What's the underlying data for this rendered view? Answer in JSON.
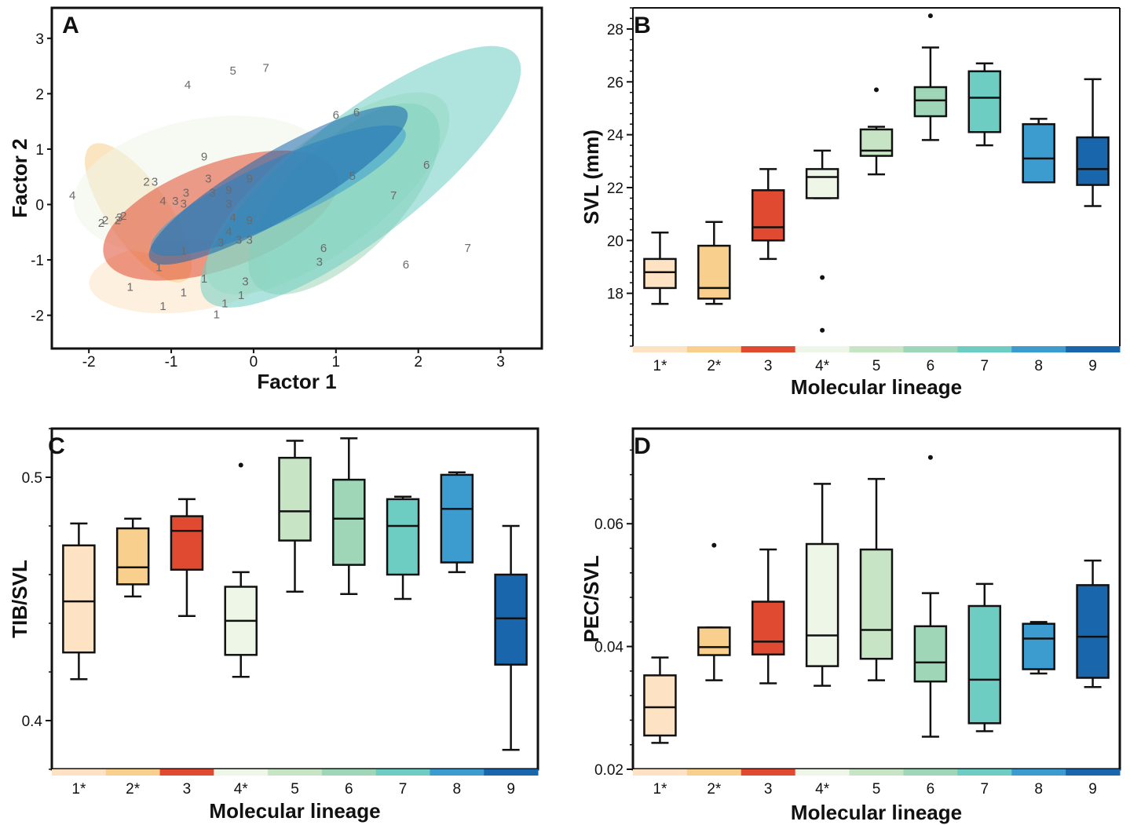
{
  "colors": {
    "1": "#fde3c4",
    "2": "#f8cf8c",
    "3": "#e04a30",
    "4": "#eef6e8",
    "5": "#c7e5c4",
    "6": "#9fd6b7",
    "7": "#6ecdc2",
    "8": "#3d9ccf",
    "9": "#1a66ad"
  },
  "chart_data": [
    {
      "panel": "A",
      "type": "scatter",
      "xlabel": "Factor 1",
      "ylabel": "Factor 2",
      "xticks": [
        "-2",
        "-1",
        "0",
        "1",
        "2",
        "3"
      ],
      "yticks": [
        "-2",
        "-1",
        "0",
        "1",
        "2",
        "3"
      ],
      "xlim": [
        -2.45,
        3.5
      ],
      "ylim": [
        -2.6,
        3.55
      ],
      "ellipses": [
        {
          "group": "1",
          "cx": -0.9,
          "cy": -1.3,
          "rx": 1.1,
          "ry": 0.65,
          "angle": -5
        },
        {
          "group": "2",
          "cx": -1.4,
          "cy": -0.15,
          "rx": 1.0,
          "ry": 0.55,
          "angle": 55
        },
        {
          "group": "4",
          "cx": -0.6,
          "cy": 0.35,
          "rx": 1.6,
          "ry": 1.2,
          "angle": -10
        },
        {
          "group": "3",
          "cx": -0.4,
          "cy": -0.2,
          "rx": 1.5,
          "ry": 0.95,
          "angle": -20
        },
        {
          "group": "5",
          "cx": 0.9,
          "cy": 0.2,
          "rx": 1.8,
          "ry": 1.0,
          "angle": -38
        },
        {
          "group": "6",
          "cx": 1.1,
          "cy": 0.1,
          "rx": 1.5,
          "ry": 1.0,
          "angle": -45
        },
        {
          "group": "7",
          "cx": 1.3,
          "cy": 0.5,
          "rx": 2.4,
          "ry": 1.1,
          "angle": -38
        },
        {
          "group": "8",
          "cx": 0.3,
          "cy": 0.25,
          "rx": 1.7,
          "ry": 0.55,
          "angle": -25
        },
        {
          "group": "9",
          "cx": 0.3,
          "cy": 0.35,
          "rx": 1.8,
          "ry": 0.6,
          "angle": -30
        }
      ],
      "points": [
        {
          "label": "4",
          "x": -2.2,
          "y": 0.15
        },
        {
          "label": "2",
          "x": -1.85,
          "y": -0.35
        },
        {
          "label": "2",
          "x": -1.8,
          "y": -0.3
        },
        {
          "label": "2",
          "x": -1.65,
          "y": -0.3
        },
        {
          "label": "3",
          "x": -1.63,
          "y": -0.25
        },
        {
          "label": "2",
          "x": -1.58,
          "y": -0.22
        },
        {
          "label": "2",
          "x": -1.3,
          "y": 0.4
        },
        {
          "label": "3",
          "x": -1.2,
          "y": 0.4
        },
        {
          "label": "4",
          "x": -1.1,
          "y": 0.05
        },
        {
          "label": "3",
          "x": -0.95,
          "y": 0.05
        },
        {
          "label": "3",
          "x": -0.85,
          "y": 0.0
        },
        {
          "label": "3",
          "x": -0.82,
          "y": 0.2
        },
        {
          "label": "3",
          "x": -0.55,
          "y": 0.45
        },
        {
          "label": "3",
          "x": -0.5,
          "y": 0.2
        },
        {
          "label": "9",
          "x": -0.6,
          "y": 0.85
        },
        {
          "label": "3",
          "x": -0.3,
          "y": 0.0
        },
        {
          "label": "9",
          "x": -0.3,
          "y": 0.25
        },
        {
          "label": "4",
          "x": -0.3,
          "y": -0.5
        },
        {
          "label": "4",
          "x": -0.25,
          "y": -0.25
        },
        {
          "label": "3",
          "x": -0.4,
          "y": -0.7
        },
        {
          "label": "3",
          "x": -0.18,
          "y": -0.65
        },
        {
          "label": "3",
          "x": -0.05,
          "y": -0.65
        },
        {
          "label": "9",
          "x": -0.05,
          "y": -0.3
        },
        {
          "label": "9",
          "x": -0.05,
          "y": 0.45
        },
        {
          "label": "4",
          "x": -0.8,
          "y": 2.15
        },
        {
          "label": "5",
          "x": -0.25,
          "y": 2.4
        },
        {
          "label": "7",
          "x": 0.15,
          "y": 2.45
        },
        {
          "label": "6",
          "x": 1.0,
          "y": 1.6
        },
        {
          "label": "6",
          "x": 1.25,
          "y": 1.65
        },
        {
          "label": "6",
          "x": 2.1,
          "y": 0.7
        },
        {
          "label": "5",
          "x": 1.2,
          "y": 0.5
        },
        {
          "label": "7",
          "x": 1.7,
          "y": 0.15
        },
        {
          "label": "7",
          "x": 2.6,
          "y": -0.8
        },
        {
          "label": "6",
          "x": 1.85,
          "y": -1.1
        },
        {
          "label": "6",
          "x": 0.85,
          "y": -0.8
        },
        {
          "label": "3",
          "x": 0.8,
          "y": -1.05
        },
        {
          "label": "1",
          "x": -1.5,
          "y": -1.5
        },
        {
          "label": "1",
          "x": -1.15,
          "y": -1.15
        },
        {
          "label": "1",
          "x": -1.1,
          "y": -1.85
        },
        {
          "label": "1",
          "x": -0.85,
          "y": -1.6
        },
        {
          "label": "1",
          "x": -0.6,
          "y": -1.35
        },
        {
          "label": "1",
          "x": -0.45,
          "y": -2.0
        },
        {
          "label": "1",
          "x": -0.35,
          "y": -1.8
        },
        {
          "label": "1",
          "x": -0.15,
          "y": -1.65
        },
        {
          "label": "1",
          "x": -0.85,
          "y": -0.85
        },
        {
          "label": "3",
          "x": -0.1,
          "y": -1.4
        }
      ]
    },
    {
      "panel": "B",
      "type": "box",
      "xlabel": "Molecular lineage",
      "ylabel": "SVL (mm)",
      "categories": [
        "1*",
        "2*",
        "3",
        "4*",
        "5",
        "6",
        "7",
        "8",
        "9"
      ],
      "yticks": [
        "18",
        "20",
        "22",
        "24",
        "26",
        "28"
      ],
      "ylim": [
        16,
        28.8
      ],
      "boxes": [
        {
          "wmin": 17.6,
          "q1": 18.2,
          "med": 18.8,
          "q3": 19.3,
          "wmax": 20.3,
          "outliers": []
        },
        {
          "wmin": 17.6,
          "q1": 17.8,
          "med": 18.2,
          "q3": 19.8,
          "wmax": 20.7,
          "outliers": []
        },
        {
          "wmin": 19.3,
          "q1": 20.0,
          "med": 20.5,
          "q3": 21.9,
          "wmax": 22.7,
          "outliers": []
        },
        {
          "wmin": 21.6,
          "q1": 21.6,
          "med": 22.4,
          "q3": 22.7,
          "wmax": 23.4,
          "outliers": [
            18.6,
            16.6
          ]
        },
        {
          "wmin": 22.5,
          "q1": 23.2,
          "med": 23.4,
          "q3": 24.2,
          "wmax": 24.3,
          "outliers": [
            25.7
          ]
        },
        {
          "wmin": 23.8,
          "q1": 24.7,
          "med": 25.3,
          "q3": 25.8,
          "wmax": 27.3,
          "outliers": [
            28.5
          ]
        },
        {
          "wmin": 23.6,
          "q1": 24.1,
          "med": 25.4,
          "q3": 26.4,
          "wmax": 26.7,
          "outliers": []
        },
        {
          "wmin": 22.2,
          "q1": 22.2,
          "med": 23.1,
          "q3": 24.4,
          "wmax": 24.6,
          "outliers": []
        },
        {
          "wmin": 21.3,
          "q1": 22.1,
          "med": 22.7,
          "q3": 23.9,
          "wmax": 26.1,
          "outliers": []
        }
      ]
    },
    {
      "panel": "C",
      "type": "box",
      "xlabel": "Molecular lineage",
      "ylabel": "TIB/SVL",
      "categories": [
        "1*",
        "2*",
        "3",
        "4*",
        "5",
        "6",
        "7",
        "8",
        "9"
      ],
      "yticks": [
        "0.4",
        "0.5"
      ],
      "ylim": [
        0.38,
        0.52
      ],
      "boxes": [
        {
          "wmin": 0.417,
          "q1": 0.428,
          "med": 0.449,
          "q3": 0.472,
          "wmax": 0.481,
          "outliers": []
        },
        {
          "wmin": 0.451,
          "q1": 0.456,
          "med": 0.463,
          "q3": 0.479,
          "wmax": 0.483,
          "outliers": []
        },
        {
          "wmin": 0.443,
          "q1": 0.462,
          "med": 0.478,
          "q3": 0.484,
          "wmax": 0.491,
          "outliers": []
        },
        {
          "wmin": 0.418,
          "q1": 0.427,
          "med": 0.441,
          "q3": 0.455,
          "wmax": 0.461,
          "outliers": [
            0.505
          ]
        },
        {
          "wmin": 0.453,
          "q1": 0.474,
          "med": 0.486,
          "q3": 0.508,
          "wmax": 0.515,
          "outliers": []
        },
        {
          "wmin": 0.452,
          "q1": 0.464,
          "med": 0.483,
          "q3": 0.499,
          "wmax": 0.516,
          "outliers": []
        },
        {
          "wmin": 0.45,
          "q1": 0.46,
          "med": 0.48,
          "q3": 0.491,
          "wmax": 0.492,
          "outliers": []
        },
        {
          "wmin": 0.461,
          "q1": 0.465,
          "med": 0.487,
          "q3": 0.501,
          "wmax": 0.502,
          "outliers": []
        },
        {
          "wmin": 0.388,
          "q1": 0.423,
          "med": 0.442,
          "q3": 0.46,
          "wmax": 0.48,
          "outliers": []
        }
      ]
    },
    {
      "panel": "D",
      "type": "box",
      "xlabel": "Molecular lineage",
      "ylabel": "PEC/SVL",
      "categories": [
        "1*",
        "2*",
        "3",
        "4*",
        "5",
        "6",
        "7",
        "8",
        "9"
      ],
      "yticks": [
        "0.02",
        "0.04",
        "0.06"
      ],
      "ylim": [
        0.02,
        0.0755
      ],
      "boxes": [
        {
          "wmin": 0.0243,
          "q1": 0.0255,
          "med": 0.0301,
          "q3": 0.0353,
          "wmax": 0.0382,
          "outliers": []
        },
        {
          "wmin": 0.0345,
          "q1": 0.0386,
          "med": 0.0399,
          "q3": 0.0431,
          "wmax": 0.0431,
          "outliers": [
            0.0565
          ]
        },
        {
          "wmin": 0.034,
          "q1": 0.0387,
          "med": 0.0408,
          "q3": 0.0473,
          "wmax": 0.0558,
          "outliers": []
        },
        {
          "wmin": 0.0336,
          "q1": 0.0368,
          "med": 0.0418,
          "q3": 0.0567,
          "wmax": 0.0665,
          "outliers": []
        },
        {
          "wmin": 0.0345,
          "q1": 0.038,
          "med": 0.0427,
          "q3": 0.0558,
          "wmax": 0.0673,
          "outliers": []
        },
        {
          "wmin": 0.0253,
          "q1": 0.0343,
          "med": 0.0374,
          "q3": 0.0433,
          "wmax": 0.0487,
          "outliers": [
            0.0708
          ]
        },
        {
          "wmin": 0.0262,
          "q1": 0.0275,
          "med": 0.0346,
          "q3": 0.0466,
          "wmax": 0.0502,
          "outliers": []
        },
        {
          "wmin": 0.0356,
          "q1": 0.0363,
          "med": 0.0413,
          "q3": 0.0437,
          "wmax": 0.044,
          "outliers": []
        },
        {
          "wmin": 0.0334,
          "q1": 0.0349,
          "med": 0.0416,
          "q3": 0.05,
          "wmax": 0.054,
          "outliers": []
        }
      ]
    }
  ]
}
